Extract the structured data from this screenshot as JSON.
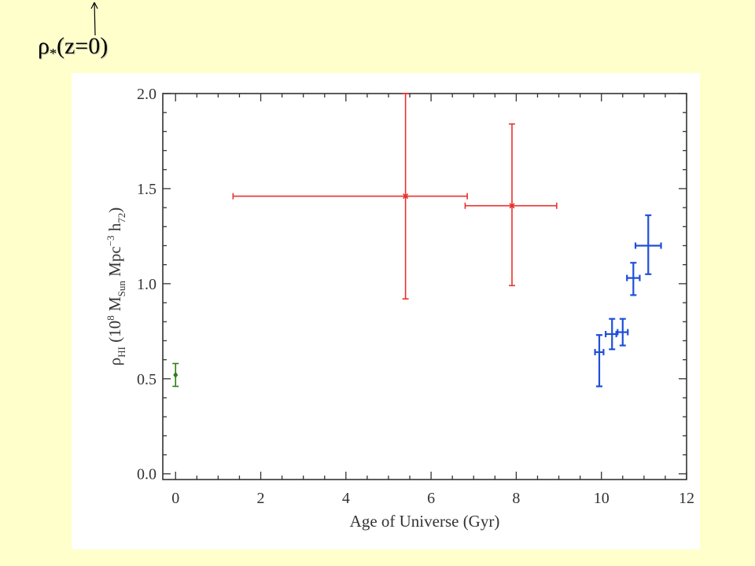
{
  "annotation": {
    "rho": "ρ",
    "star": "*",
    "text": "(z=0)",
    "arrow_icon": "up-arrow-icon"
  },
  "colors": {
    "background": "#ffffcc",
    "panel": "#ffffff",
    "axes": "#333333",
    "series_green": "#2e7d12",
    "series_red": "#e8322d",
    "series_blue": "#1f4fd8"
  },
  "chart_data": {
    "type": "scatter",
    "title": "",
    "xlabel": "Age of Universe (Gyr)",
    "ylabel": {
      "main": "ρ",
      "sub1": "HI",
      "part2": " (10",
      "sup1": "8",
      "part3": " M",
      "sub2": "Sun",
      "part4": " Mpc",
      "sup2": "−3",
      "part5": " h",
      "sub3": "72",
      "part6": ")"
    },
    "xlim": [
      -0.3,
      12
    ],
    "ylim": [
      -0.03,
      2.0
    ],
    "x_ticks": [
      0,
      2,
      4,
      6,
      8,
      10,
      12
    ],
    "x_tick_labels": [
      "0",
      "2",
      "4",
      "6",
      "8",
      "10",
      "12"
    ],
    "y_ticks": [
      0.0,
      0.5,
      1.0,
      1.5,
      2.0
    ],
    "y_tick_labels": [
      "0.0",
      "0.5",
      "1.0",
      "1.5",
      "2.0"
    ],
    "grid": false,
    "series": [
      {
        "color_key": "series_green",
        "marker": "diamond",
        "points": [
          {
            "x": 0.0,
            "y": 0.52,
            "xerr": [
              0,
              0
            ],
            "yerr": [
              0.06,
              0.06
            ]
          }
        ]
      },
      {
        "color_key": "series_red",
        "marker": "asterisk",
        "points": [
          {
            "x": 5.4,
            "y": 1.46,
            "xerr": [
              4.05,
              1.45
            ],
            "yerr": [
              0.54,
              0.54
            ]
          },
          {
            "x": 7.9,
            "y": 1.41,
            "xerr": [
              1.1,
              1.05
            ],
            "yerr": [
              0.42,
              0.43
            ]
          }
        ]
      },
      {
        "color_key": "series_blue",
        "marker": "none",
        "points": [
          {
            "x": 9.95,
            "y": 0.64,
            "xerr": [
              0.1,
              0.1
            ],
            "yerr": [
              0.18,
              0.09
            ]
          },
          {
            "x": 10.25,
            "y": 0.735,
            "xerr": [
              0.15,
              0.1
            ],
            "yerr": [
              0.08,
              0.08
            ]
          },
          {
            "x": 10.5,
            "y": 0.745,
            "xerr": [
              0.12,
              0.12
            ],
            "yerr": [
              0.07,
              0.07
            ]
          },
          {
            "x": 10.75,
            "y": 1.03,
            "xerr": [
              0.15,
              0.15
            ],
            "yerr": [
              0.09,
              0.08
            ]
          },
          {
            "x": 11.1,
            "y": 1.2,
            "xerr": [
              0.3,
              0.3
            ],
            "yerr": [
              0.15,
              0.16
            ]
          }
        ]
      }
    ]
  }
}
